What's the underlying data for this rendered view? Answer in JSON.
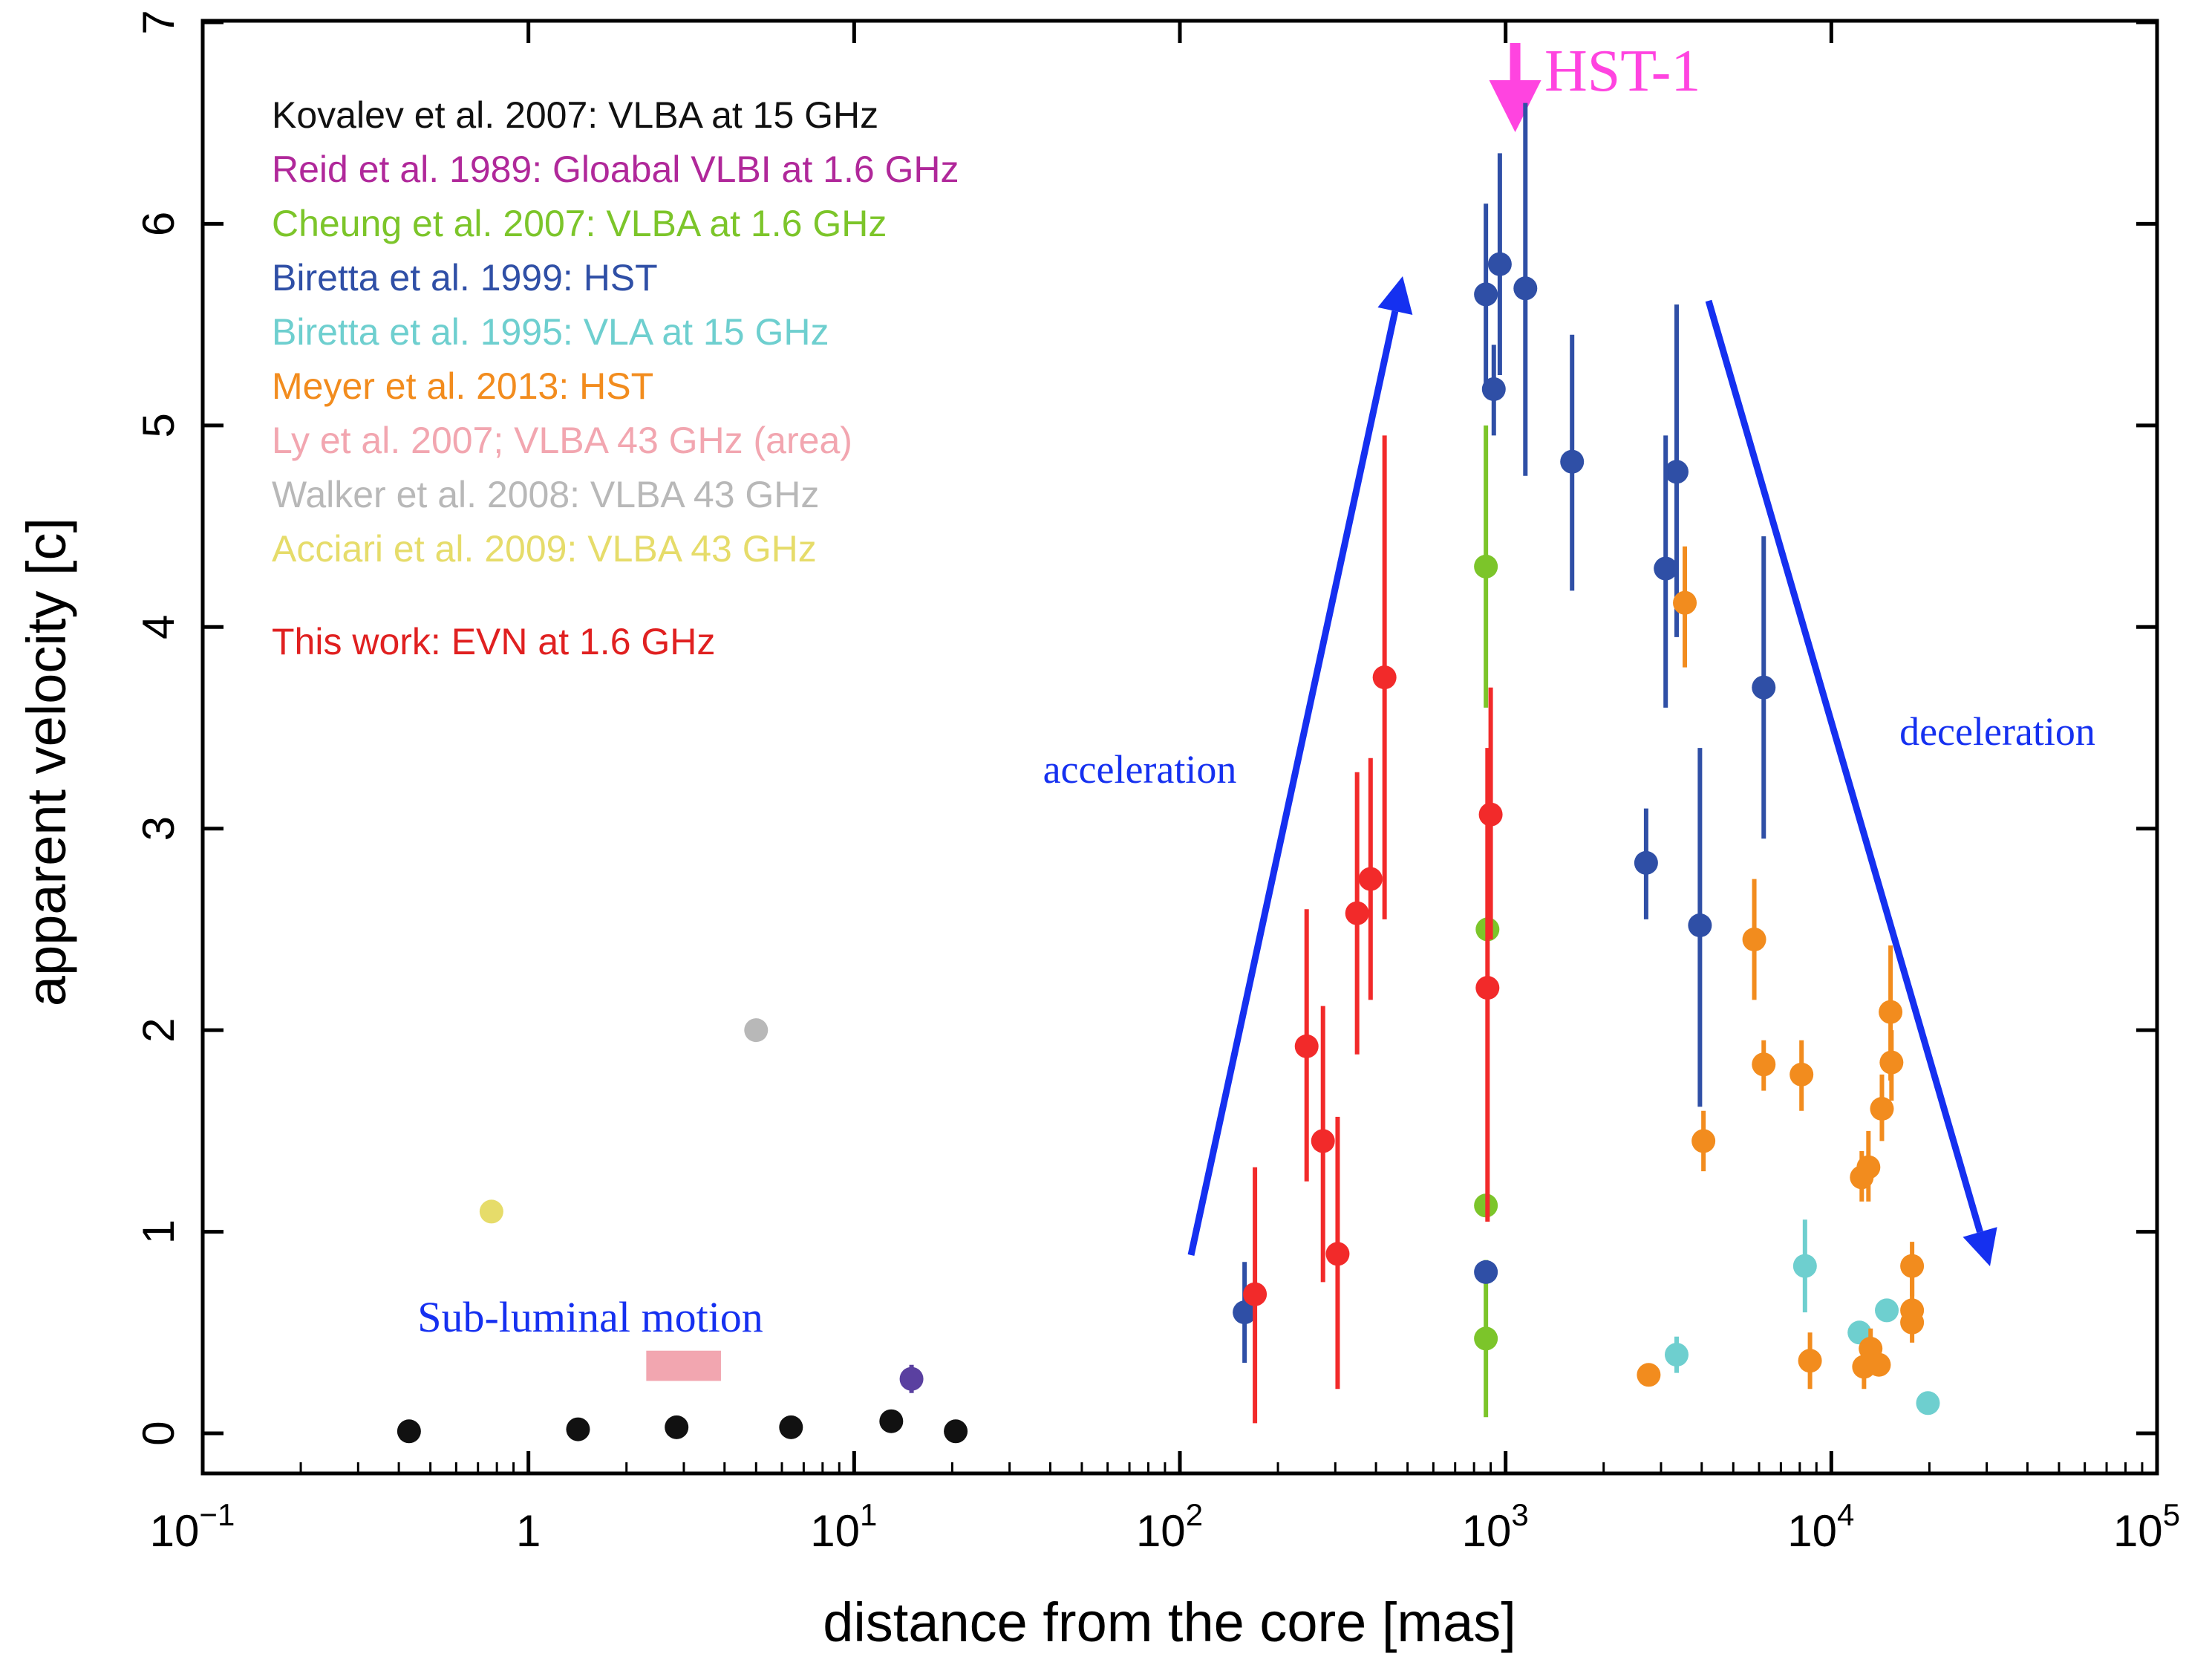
{
  "chart_data": {
    "type": "scatter",
    "xscale": "log",
    "xlim": [
      0.1,
      100000
    ],
    "ylim": [
      -0.2,
      7
    ],
    "xlabel": "distance from the core [mas]",
    "ylabel": "apparent velocity [c]",
    "xticks": [
      {
        "value": 0.1,
        "base": "10",
        "exp": "−1"
      },
      {
        "value": 1,
        "base": "1",
        "exp": ""
      },
      {
        "value": 10,
        "base": "10",
        "exp": "1"
      },
      {
        "value": 100,
        "base": "10",
        "exp": "2"
      },
      {
        "value": 1000,
        "base": "10",
        "exp": "3"
      },
      {
        "value": 10000,
        "base": "10",
        "exp": "4"
      },
      {
        "value": 100000,
        "base": "10",
        "exp": "5"
      }
    ],
    "yticks": [
      {
        "value": 0,
        "label": "0"
      },
      {
        "value": 1,
        "label": "1"
      },
      {
        "value": 2,
        "label": "2"
      },
      {
        "value": 3,
        "label": "3"
      },
      {
        "value": 4,
        "label": "4"
      },
      {
        "value": 5,
        "label": "5"
      },
      {
        "value": 6,
        "label": "6"
      },
      {
        "value": 7,
        "label": "7"
      }
    ],
    "legend": [
      {
        "label": "Kovalev et al. 2007: VLBA at 15 GHz",
        "color": "#111111"
      },
      {
        "label": "Reid et al. 1989: Gloabal VLBI at 1.6 GHz",
        "color": "#b0289a"
      },
      {
        "label": "Cheung et al. 2007: VLBA at 1.6 GHz",
        "color": "#7cc52a"
      },
      {
        "label": "Biretta et al. 1999: HST",
        "color": "#2f4fa6"
      },
      {
        "label": "Biretta et al. 1995: VLA at 15 GHz",
        "color": "#6ecfcf"
      },
      {
        "label": "Meyer et al. 2013: HST",
        "color": "#f28c1e"
      },
      {
        "label": "Ly et al. 2007; VLBA 43 GHz (area)",
        "color": "#f2a6b0"
      },
      {
        "label": "Walker et al. 2008: VLBA 43 GHz",
        "color": "#b8b8b8"
      },
      {
        "label": "Acciari et al. 2009: VLBA 43 GHz",
        "color": "#e6dc6a"
      },
      {
        "label": "This work: EVN at 1.6 GHz",
        "color": "#e02020"
      }
    ],
    "annotations": {
      "acceleration": "acceleration",
      "deceleration": "deceleration",
      "subluminal": "Sub-luminal motion",
      "hst1": "HST-1",
      "hst1_position": 1070
    },
    "arrow_color": "#1530f0",
    "hst1_color": "#ff44e0",
    "series": [
      {
        "name": "Kovalev et al. 2007",
        "color": "#111111",
        "points": [
          {
            "x": 0.43,
            "y": 0.01
          },
          {
            "x": 1.42,
            "y": 0.02
          },
          {
            "x": 2.85,
            "y": 0.03
          },
          {
            "x": 6.4,
            "y": 0.03
          },
          {
            "x": 13.0,
            "y": 0.06
          },
          {
            "x": 20.5,
            "y": 0.01
          }
        ]
      },
      {
        "name": "Reid et al. 1989",
        "color": "#5a40a0",
        "points": [
          {
            "x": 15.0,
            "y": 0.27,
            "yerr": [
              0.2,
              0.34
            ]
          }
        ]
      },
      {
        "name": "Acciari et al. 2009",
        "color": "#e6dc6a",
        "points": [
          {
            "x": 0.77,
            "y": 1.1
          }
        ]
      },
      {
        "name": "Walker et al. 2008",
        "color": "#b8b8b8",
        "points": [
          {
            "x": 5.0,
            "y": 2.0
          }
        ]
      },
      {
        "name": "Cheung et al. 2007",
        "color": "#7cc52a",
        "points": [
          {
            "x": 870,
            "y": 4.3,
            "yerr": [
              3.6,
              5.0
            ]
          },
          {
            "x": 880,
            "y": 2.5
          },
          {
            "x": 870,
            "y": 1.13
          },
          {
            "x": 870,
            "y": 0.47,
            "yerr": [
              0.08,
              0.86
            ]
          }
        ]
      },
      {
        "name": "Biretta et al. 1999",
        "color": "#2f4fa6",
        "points": [
          {
            "x": 158,
            "y": 0.6,
            "yerr": [
              0.35,
              0.85
            ]
          },
          {
            "x": 870,
            "y": 5.65,
            "yerr": [
              5.2,
              6.1
            ]
          },
          {
            "x": 960,
            "y": 5.8,
            "yerr": [
              5.25,
              6.35
            ]
          },
          {
            "x": 920,
            "y": 5.18,
            "yerr": [
              4.95,
              5.4
            ]
          },
          {
            "x": 1150,
            "y": 5.68,
            "yerr": [
              4.75,
              6.6
            ]
          },
          {
            "x": 1600,
            "y": 4.82,
            "yerr": [
              4.18,
              5.45
            ]
          },
          {
            "x": 3350,
            "y": 4.77,
            "yerr": [
              3.95,
              5.6
            ]
          },
          {
            "x": 3100,
            "y": 4.29,
            "yerr": [
              3.6,
              4.95
            ]
          },
          {
            "x": 6200,
            "y": 3.7,
            "yerr": [
              2.95,
              4.45
            ]
          },
          {
            "x": 2700,
            "y": 2.83,
            "yerr": [
              2.55,
              3.1
            ]
          },
          {
            "x": 3950,
            "y": 2.52,
            "yerr": [
              1.62,
              3.4
            ]
          },
          {
            "x": 870,
            "y": 0.8
          }
        ]
      },
      {
        "name": "Biretta et al. 1995",
        "color": "#6ecfcf",
        "points": [
          {
            "x": 3350,
            "y": 0.39,
            "yerr": [
              0.3,
              0.48
            ]
          },
          {
            "x": 8300,
            "y": 0.83,
            "yerr": [
              0.6,
              1.06
            ]
          },
          {
            "x": 12200,
            "y": 0.5
          },
          {
            "x": 14800,
            "y": 0.61
          },
          {
            "x": 19800,
            "y": 0.15
          }
        ]
      },
      {
        "name": "Meyer et al. 2013",
        "color": "#f28c1e",
        "points": [
          {
            "x": 3550,
            "y": 4.12,
            "yerr": [
              3.8,
              4.4
            ]
          },
          {
            "x": 5800,
            "y": 2.45,
            "yerr": [
              2.15,
              2.75
            ]
          },
          {
            "x": 4050,
            "y": 1.45,
            "yerr": [
              1.3,
              1.6
            ]
          },
          {
            "x": 6200,
            "y": 1.83,
            "yerr": [
              1.7,
              1.95
            ]
          },
          {
            "x": 8100,
            "y": 1.78,
            "yerr": [
              1.6,
              1.95
            ]
          },
          {
            "x": 15200,
            "y": 2.09,
            "yerr": [
              1.75,
              2.42
            ]
          },
          {
            "x": 15300,
            "y": 1.84,
            "yerr": [
              1.65,
              2.0
            ]
          },
          {
            "x": 14300,
            "y": 1.61,
            "yerr": [
              1.45,
              1.78
            ]
          },
          {
            "x": 12400,
            "y": 1.27,
            "yerr": [
              1.15,
              1.4
            ]
          },
          {
            "x": 13000,
            "y": 1.32,
            "yerr": [
              1.15,
              1.5
            ]
          },
          {
            "x": 17700,
            "y": 0.83,
            "yerr": [
              0.68,
              0.95
            ]
          },
          {
            "x": 17700,
            "y": 0.61,
            "yerr": [
              0.45,
              0.78
            ]
          },
          {
            "x": 17700,
            "y": 0.55
          },
          {
            "x": 2750,
            "y": 0.29
          },
          {
            "x": 8600,
            "y": 0.36,
            "yerr": [
              0.22,
              0.5
            ]
          },
          {
            "x": 12600,
            "y": 0.33,
            "yerr": [
              0.22,
              0.45
            ]
          },
          {
            "x": 13200,
            "y": 0.42,
            "yerr": [
              0.3,
              0.52
            ]
          },
          {
            "x": 14000,
            "y": 0.34
          }
        ]
      },
      {
        "name": "This work",
        "color": "#f22a2a",
        "points": [
          {
            "x": 170,
            "y": 0.69,
            "yerr": [
              0.05,
              1.32
            ]
          },
          {
            "x": 245,
            "y": 1.92,
            "yerr": [
              1.25,
              2.6
            ]
          },
          {
            "x": 275,
            "y": 1.45,
            "yerr": [
              0.75,
              2.12
            ]
          },
          {
            "x": 305,
            "y": 0.89,
            "yerr": [
              0.22,
              1.57
            ]
          },
          {
            "x": 350,
            "y": 2.58,
            "yerr": [
              1.88,
              3.28
            ]
          },
          {
            "x": 385,
            "y": 2.75,
            "yerr": [
              2.15,
              3.35
            ]
          },
          {
            "x": 425,
            "y": 3.75,
            "yerr": [
              2.55,
              4.95
            ]
          },
          {
            "x": 900,
            "y": 3.07,
            "yerr": [
              2.45,
              3.7
            ]
          },
          {
            "x": 880,
            "y": 2.21,
            "yerr": [
              1.05,
              3.4
            ]
          }
        ]
      }
    ],
    "ly_area": {
      "x": [
        2.3,
        3.9
      ],
      "y": [
        0.26,
        0.41
      ],
      "color": "#f2a6b0"
    }
  }
}
